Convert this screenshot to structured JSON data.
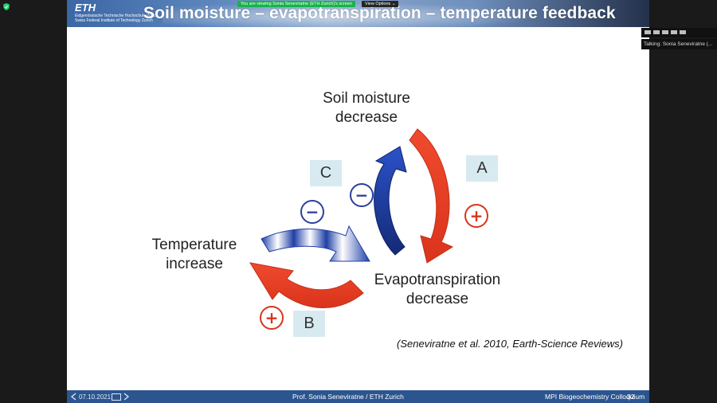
{
  "zoom": {
    "share_banner": "You are viewing Sonia Seneviratne (ETH Zurich)'s screen",
    "view_options": "View Options ⌄",
    "talking": "Talking: Sonia Seneviratne (..."
  },
  "slide": {
    "logo": "ETH",
    "logo_subline1": "Eidgenössische Technische Hochschule Zürich",
    "logo_subline2": "Swiss Federal Institute of Technology Zurich",
    "title": "Soil moisture – evapotranspiration – temperature feedback",
    "labels": {
      "soil_line1": "Soil moisture",
      "soil_line2": "decrease",
      "temp_line1": "Temperature",
      "temp_line2": "increase",
      "evap_line1": "Evapotranspiration",
      "evap_line2": "decrease"
    },
    "boxes": {
      "a": "A",
      "b": "B",
      "c": "C"
    },
    "signs": {
      "plus": "+",
      "minus": "−"
    },
    "citation": "(Seneviratne et al. 2010, Earth-Science Reviews)",
    "footer": {
      "left": "07.10.2021",
      "center": "Prof. Sonia Seneviratne / ETH Zurich",
      "right": "MPI Biogeochemistry Colloquium",
      "page": "32"
    }
  },
  "colors": {
    "red_arrow": "#e8452c",
    "blue_arrow": "#1f3fa6",
    "footer_bg": "#2c5590",
    "box_bg": "#d7eaf0"
  },
  "icons": [
    "shield-icon",
    "prev-slide-icon",
    "next-slide-icon",
    "slide-sorter-icon"
  ]
}
